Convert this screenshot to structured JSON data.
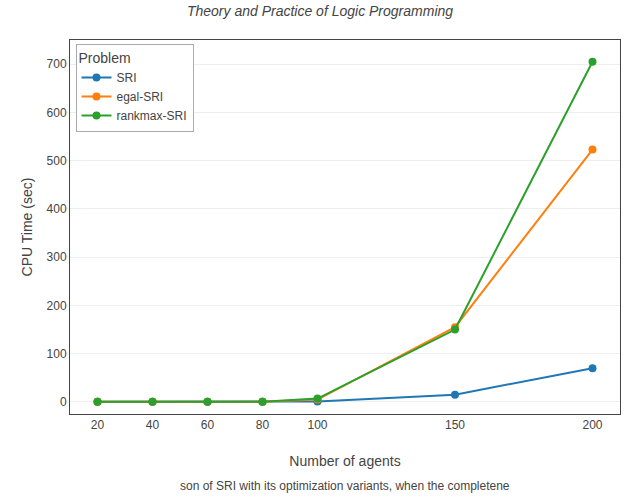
{
  "chart_data": {
    "type": "line",
    "title": "Theory and Practice of Logic Programming",
    "x_label": "Number of agents",
    "y_label": "CPU Time (sec)",
    "legend_title": "Problem",
    "annotations": [
      "son of SRI with its optimization variants, when the completene"
    ],
    "x": [
      20,
      40,
      60,
      80,
      100,
      150,
      200
    ],
    "series": [
      {
        "name": "SRI",
        "color": "#1f77b4",
        "marker": "circle",
        "values": [
          0.3,
          0.3,
          0.3,
          0.3,
          1.0,
          15.0,
          70.0
        ]
      },
      {
        "name": "egal-SRI",
        "color": "#ff7f0e",
        "marker": "circle",
        "values": [
          0.3,
          0.3,
          0.3,
          0.3,
          5.0,
          155.0,
          523.0
        ]
      },
      {
        "name": "rankmax-SRI",
        "color": "#2ca02c",
        "marker": "circle",
        "values": [
          0.3,
          0.3,
          0.3,
          0.3,
          7.0,
          150.0,
          705.0
        ]
      }
    ],
    "xlim": [
      10,
      210
    ],
    "xticks": [
      20,
      40,
      60,
      80,
      100,
      150,
      200
    ],
    "ylim": [
      -25,
      750
    ],
    "yticks": [
      0,
      100,
      200,
      300,
      400,
      500,
      600,
      700
    ],
    "grid": "y",
    "legend": "upper left"
  }
}
